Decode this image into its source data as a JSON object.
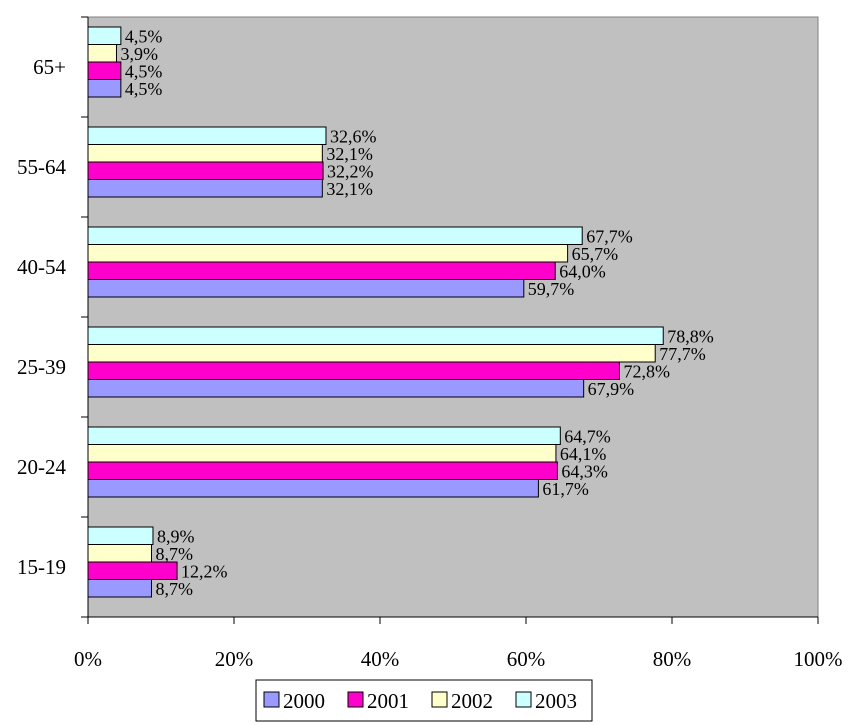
{
  "chart_data": {
    "type": "bar",
    "orientation": "horizontal",
    "categories": [
      "65+",
      "55-64",
      "40-54",
      "25-39",
      "20-24",
      "15-19"
    ],
    "series": [
      {
        "name": "2000",
        "color": "#9999ff",
        "values": [
          4.5,
          32.1,
          59.7,
          67.9,
          61.7,
          8.7
        ],
        "labels": [
          "4,5%",
          "32,1%",
          "59,7%",
          "67,9%",
          "61,7%",
          "8,7%"
        ]
      },
      {
        "name": "2001",
        "color": "#ff00cc",
        "values": [
          4.5,
          32.2,
          64.0,
          72.8,
          64.3,
          12.2
        ],
        "labels": [
          "4,5%",
          "32,2%",
          "64,0%",
          "72,8%",
          "64,3%",
          "12,2%"
        ]
      },
      {
        "name": "2002",
        "color": "#ffffcc",
        "values": [
          3.9,
          32.1,
          65.7,
          77.7,
          64.1,
          8.7
        ],
        "labels": [
          "3,9%",
          "32,1%",
          "65,7%",
          "77,7%",
          "64,1%",
          "8,7%"
        ]
      },
      {
        "name": "2003",
        "color": "#ccffff",
        "values": [
          4.5,
          32.6,
          67.7,
          78.8,
          64.7,
          8.9
        ],
        "labels": [
          "4,5%",
          "32,6%",
          "67,7%",
          "78,8%",
          "64,7%",
          "8,9%"
        ]
      }
    ],
    "xlim": [
      0,
      100
    ],
    "xticks": [
      "0%",
      "20%",
      "40%",
      "60%",
      "80%",
      "100%"
    ],
    "grid": false,
    "plot_background": "#c0c0c0",
    "legend_position": "bottom"
  }
}
